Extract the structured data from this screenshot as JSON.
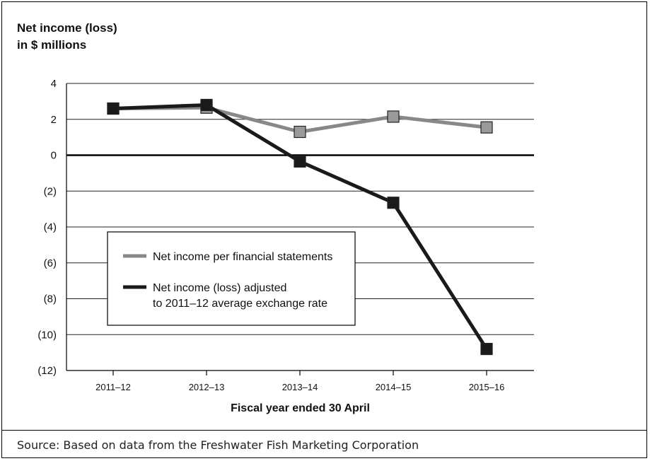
{
  "chart_data": {
    "type": "line",
    "title": "",
    "ylabel_lines": [
      "Net income (loss)",
      "in $ millions"
    ],
    "xlabel": "Fiscal year ended 30 April",
    "categories": [
      "2011–12",
      "2012–13",
      "2013–14",
      "2014–15",
      "2015–16"
    ],
    "ylim": [
      -12,
      4
    ],
    "yticks": [
      4,
      2,
      0,
      -2,
      -4,
      -6,
      -8,
      -10,
      -12
    ],
    "ytick_labels": [
      "4",
      "2",
      "0",
      "(2)",
      "(4)",
      "(6)",
      "(8)",
      "(10)",
      "(12)"
    ],
    "grid": true,
    "legend_placement": "center-left",
    "series": [
      {
        "name": "Net income per financial statements",
        "color": "#888888",
        "marker_fill": "#9a9a9a",
        "values": [
          2.6,
          2.65,
          1.3,
          2.15,
          1.55
        ]
      },
      {
        "name": "Net income (loss) adjusted to 2011–12 average exchange rate",
        "name_lines": [
          "Net income (loss) adjusted",
          "to 2011–12 average exchange rate"
        ],
        "color": "#1a1a1a",
        "marker_fill": "#1a1a1a",
        "values": [
          2.6,
          2.8,
          -0.35,
          -2.65,
          -10.8
        ]
      }
    ]
  },
  "source": "Source: Based on data from the Freshwater Fish Marketing Corporation"
}
